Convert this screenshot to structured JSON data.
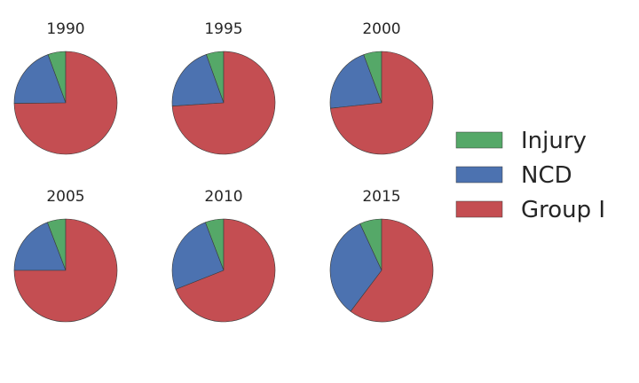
{
  "colors": {
    "Injury": "#55a868",
    "NCD": "#4c72b0",
    "Group I": "#c44e52",
    "edge": "#3a3a3a"
  },
  "legend": {
    "items": [
      "Injury",
      "NCD",
      "Group I"
    ]
  },
  "chart_data": {
    "type": "pie",
    "series_order": [
      "Injury",
      "NCD",
      "Group I"
    ],
    "panels": [
      {
        "title": "1990",
        "values": {
          "Injury": 0.056,
          "NCD": 0.196,
          "Group I": 0.748
        }
      },
      {
        "title": "1995",
        "values": {
          "Injury": 0.055,
          "NCD": 0.205,
          "Group I": 0.74
        }
      },
      {
        "title": "2000",
        "values": {
          "Injury": 0.057,
          "NCD": 0.21,
          "Group I": 0.733
        }
      },
      {
        "title": "2005",
        "values": {
          "Injury": 0.058,
          "NCD": 0.192,
          "Group I": 0.75
        }
      },
      {
        "title": "2010",
        "values": {
          "Injury": 0.058,
          "NCD": 0.252,
          "Group I": 0.69
        }
      },
      {
        "title": "2015",
        "values": {
          "Injury": 0.069,
          "NCD": 0.328,
          "Group I": 0.603
        }
      }
    ],
    "legend_position": "right"
  }
}
